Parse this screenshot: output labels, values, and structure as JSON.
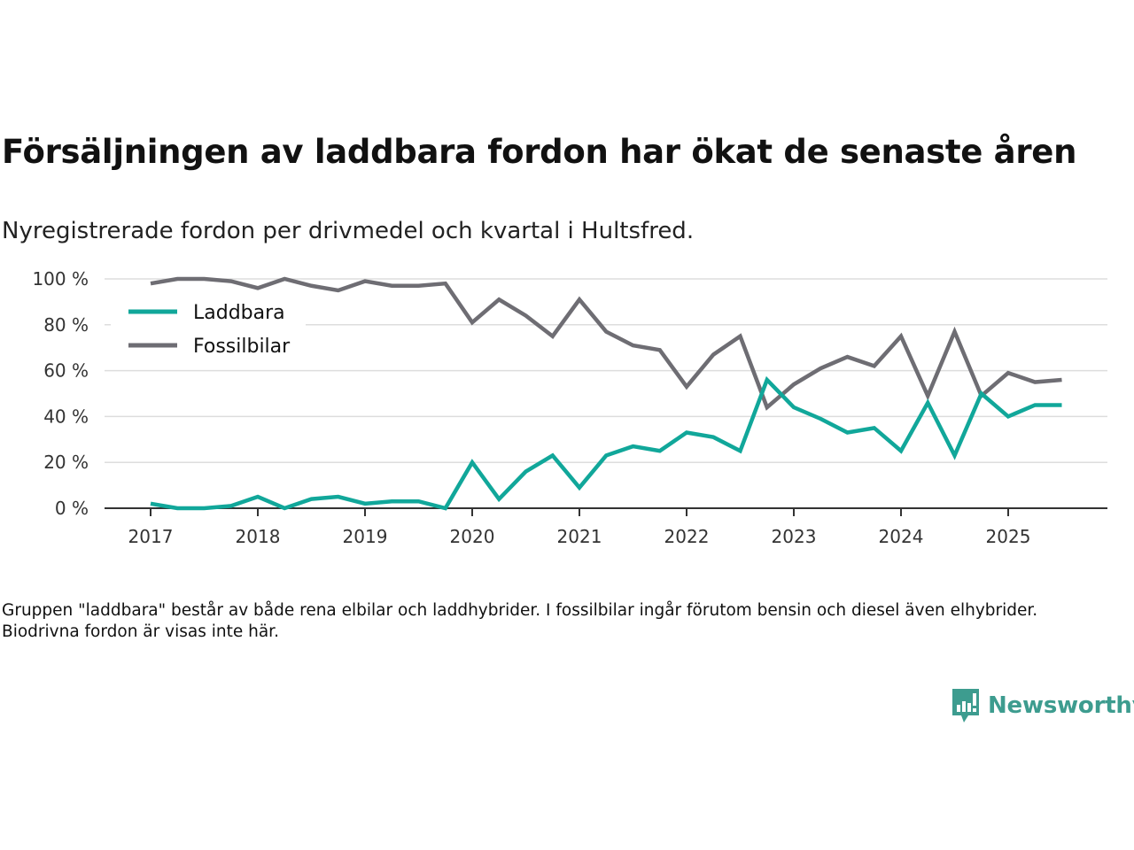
{
  "header": {
    "title": "Försäljningen av laddbara fordon har ökat de senaste åren",
    "subtitle": "Nyregistrerade fordon per drivmedel och kvartal i Hultsfred."
  },
  "footer": {
    "note": "Gruppen \"laddbara\" består av både rena elbilar och laddhybrider. I fossilbilar ingår förutom bensin och diesel även elhybrider. Biodrivna fordon är visas inte här.",
    "brand": "Newsworthy",
    "brand_icon": "bar-chart-speech-bubble-icon"
  },
  "colors": {
    "laddbara": "#11a79a",
    "fossilbilar": "#6e6d73",
    "brand": "#3d9c8f",
    "grid": "#dddddd",
    "axis": "#333333"
  },
  "chart_data": {
    "type": "line",
    "title": "Försäljningen av laddbara fordon har ökat de senaste åren",
    "subtitle": "Nyregistrerade fordon per drivmedel och kvartal i Hultsfred.",
    "xlabel": "",
    "ylabel": "",
    "x_start_year": 2017,
    "x_step_per_point": 0.25,
    "x_ticks": [
      "2017",
      "2018",
      "2019",
      "2020",
      "2021",
      "2022",
      "2023",
      "2024",
      "2025"
    ],
    "y_ticks": [
      "0 %",
      "20 %",
      "40 %",
      "60 %",
      "80 %",
      "100 %"
    ],
    "y_tick_values": [
      0,
      20,
      40,
      60,
      80,
      100
    ],
    "ylim": [
      0,
      100
    ],
    "xlim": [
      2016.6,
      2026.0
    ],
    "grid": true,
    "legend": "top-left",
    "series": [
      {
        "name": "Laddbara",
        "color": "#11a79a",
        "values": [
          2,
          0,
          0,
          1,
          5,
          0,
          4,
          5,
          2,
          3,
          3,
          0,
          20,
          4,
          16,
          23,
          9,
          23,
          27,
          25,
          33,
          31,
          25,
          56,
          44,
          39,
          33,
          35,
          25,
          46,
          23,
          50,
          40,
          45,
          45
        ]
      },
      {
        "name": "Fossilbilar",
        "color": "#6e6d73",
        "values": [
          98,
          100,
          100,
          99,
          96,
          100,
          97,
          95,
          99,
          97,
          97,
          98,
          81,
          91,
          84,
          75,
          91,
          77,
          71,
          69,
          53,
          67,
          75,
          44,
          54,
          61,
          66,
          62,
          75,
          49,
          77,
          49,
          59,
          55,
          56
        ]
      }
    ]
  }
}
